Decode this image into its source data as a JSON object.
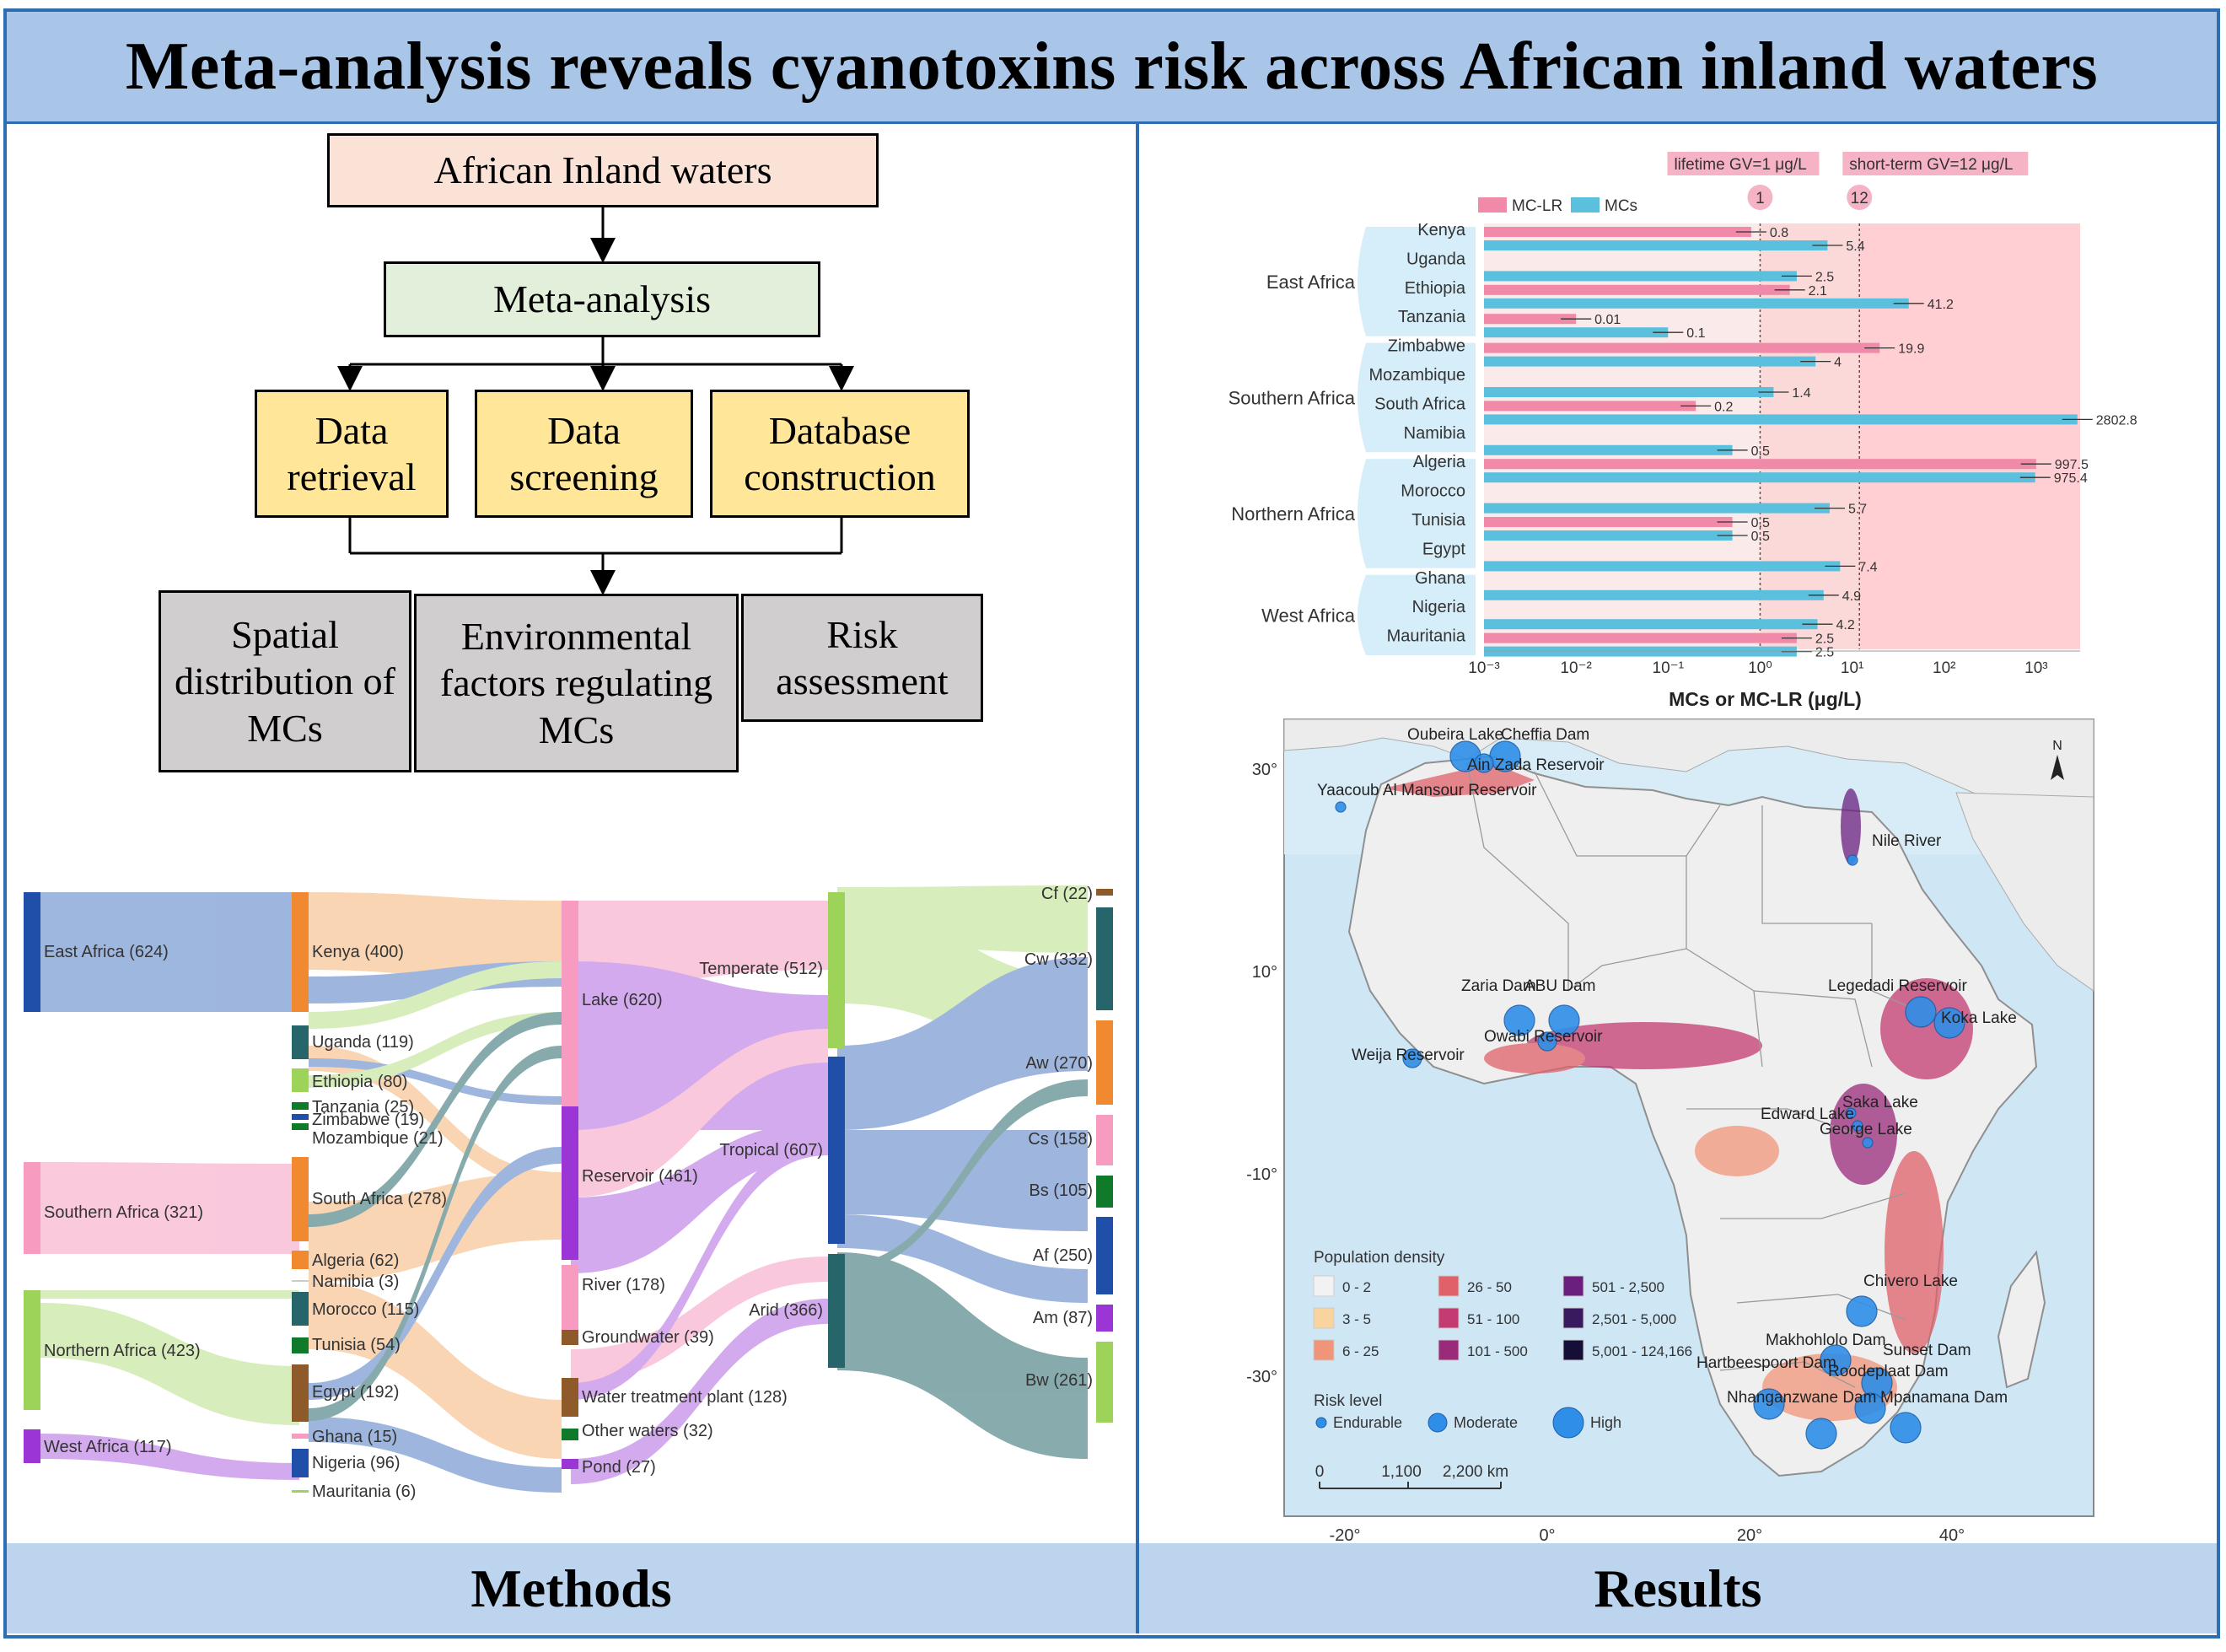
{
  "title": "Meta-analysis reveals cyanotoxins risk across African inland waters",
  "footer": {
    "left": "Methods",
    "right": "Results"
  },
  "flowchart": {
    "top": "African  Inland  waters",
    "meta": "Meta-analysis",
    "steps": [
      "Data retrieval",
      "Data screening",
      "Database construction"
    ],
    "outputs": [
      "Spatial distribution of MCs",
      "Environmental factors regulating  MCs",
      "Risk assessment"
    ]
  },
  "sankey": {
    "regions": [
      "East Africa (624)",
      "Southern Africa (321)",
      "Northern Africa (423)",
      "West Africa (117)"
    ],
    "countries": [
      "Kenya (400)",
      "Uganda (119)",
      "Ethiopia (80)",
      "Tanzania (25)",
      "Zimbabwe (19)",
      "Mozambique (21)",
      "South Africa (278)",
      "Algeria (62)",
      "Namibia (3)",
      "Morocco (115)",
      "Tunisia (54)",
      "Egypt (192)",
      "Ghana (15)",
      "Nigeria (96)",
      "Mauritania (6)"
    ],
    "waters": [
      "Lake (620)",
      "Reservoir (461)",
      "River (178)",
      "Groundwater (39)",
      "Water treatment plant (128)",
      "Other waters (32)",
      "Pond (27)"
    ],
    "climate_zones": [
      "Temperate (512)",
      "Tropical (607)",
      "Arid (366)"
    ],
    "climates": [
      "Cf (22)",
      "Cw (332)",
      "Aw (270)",
      "Cs (158)",
      "Bs (105)",
      "Af (250)",
      "Am (87)",
      "Bw (261)"
    ]
  },
  "chart_data": {
    "type": "bar",
    "orientation": "horizontal",
    "xscale": "log",
    "xlabel": "MCs or MC-LR (μg/L)",
    "xlim": [
      0.001,
      3000
    ],
    "xticks": [
      "10⁻³",
      "10⁻²",
      "10⁻¹",
      "10⁰",
      "10¹",
      "10²",
      "10³"
    ],
    "series": [
      {
        "name": "MC-LR",
        "color": "#f08aa8"
      },
      {
        "name": "MCs",
        "color": "#5bc0de"
      }
    ],
    "guidelines": [
      {
        "label": "lifetime GV=1 μg/L",
        "value": 1,
        "marker": "1"
      },
      {
        "label": "short-term GV=12 μg/L",
        "value": 12,
        "marker": "12"
      }
    ],
    "groups": [
      {
        "name": "East Africa",
        "countries": [
          {
            "name": "Kenya",
            "bars": [
              {
                "s": "MC-LR",
                "v": 0.8,
                "label": "0.8"
              },
              {
                "s": "MCs",
                "v": 5.4,
                "label": "5.4"
              }
            ]
          },
          {
            "name": "Uganda",
            "bars": [
              {
                "s": "MCs",
                "v": 2.5,
                "label": "2.5"
              }
            ]
          },
          {
            "name": "Ethiopia",
            "bars": [
              {
                "s": "MC-LR",
                "v": 2.1,
                "label": "2.1"
              },
              {
                "s": "MCs",
                "v": 41.2,
                "label": "41.2"
              }
            ]
          },
          {
            "name": "Tanzania",
            "bars": [
              {
                "s": "MC-LR",
                "v": 0.01,
                "label": "0.01"
              },
              {
                "s": "MCs",
                "v": 0.1,
                "label": "0.1"
              }
            ]
          }
        ]
      },
      {
        "name": "Southern Africa",
        "countries": [
          {
            "name": "Zimbabwe",
            "bars": [
              {
                "s": "MC-LR",
                "v": 19.9,
                "label": "19.9"
              },
              {
                "s": "MCs",
                "v": 4,
                "label": "4"
              }
            ]
          },
          {
            "name": "Mozambique",
            "bars": [
              {
                "s": "MCs",
                "v": 1.4,
                "label": "1.4"
              }
            ]
          },
          {
            "name": "South Africa",
            "bars": [
              {
                "s": "MC-LR",
                "v": 0.2,
                "label": "0.2"
              },
              {
                "s": "MCs",
                "v": 2802.8,
                "label": "2802.8"
              }
            ]
          },
          {
            "name": "Namibia",
            "bars": [
              {
                "s": "MCs",
                "v": 0.5,
                "label": "0.5"
              }
            ]
          }
        ]
      },
      {
        "name": "Northern Africa",
        "countries": [
          {
            "name": "Algeria",
            "bars": [
              {
                "s": "MC-LR",
                "v": 997.5,
                "label": "997.5"
              },
              {
                "s": "MCs",
                "v": 975.4,
                "label": "975.4"
              }
            ]
          },
          {
            "name": "Morocco",
            "bars": [
              {
                "s": "MCs",
                "v": 5.7,
                "label": "5.7"
              }
            ]
          },
          {
            "name": "Tunisia",
            "bars": [
              {
                "s": "MC-LR",
                "v": 0.5,
                "label": "0.5"
              },
              {
                "s": "MCs",
                "v": 0.5,
                "label": "0.5"
              }
            ]
          },
          {
            "name": "Egypt",
            "bars": [
              {
                "s": "MCs",
                "v": 7.4,
                "label": "7.4"
              }
            ]
          }
        ]
      },
      {
        "name": "West Africa",
        "countries": [
          {
            "name": "Ghana",
            "bars": [
              {
                "s": "MCs",
                "v": 4.9,
                "label": "4.9"
              }
            ]
          },
          {
            "name": "Nigeria",
            "bars": [
              {
                "s": "MCs",
                "v": 4.2,
                "label": "4.2"
              }
            ]
          },
          {
            "name": "Mauritania",
            "bars": [
              {
                "s": "MC-LR",
                "v": 2.5,
                "label": "2.5"
              },
              {
                "s": "MCs",
                "v": 2.5,
                "label": "2.5"
              }
            ]
          }
        ]
      }
    ]
  },
  "map": {
    "lat_labels": [
      "30°",
      "10°",
      "-10°",
      "-30°"
    ],
    "lon_labels": [
      "-20°",
      "0°",
      "20°",
      "40°"
    ],
    "scale_labels": [
      "0",
      "1,100",
      "2,200 km"
    ],
    "north": "N",
    "sites": [
      {
        "name": "Oubeira Lake",
        "risk": "High"
      },
      {
        "name": "Cheffia Dam",
        "risk": "High"
      },
      {
        "name": "Ain Zada Reservoir",
        "risk": "Moderate"
      },
      {
        "name": "Yaacoub Al Mansour Reservoir",
        "risk": "Endurable"
      },
      {
        "name": "Nile River",
        "risk": "Endurable"
      },
      {
        "name": "Zaria Dam",
        "risk": "High"
      },
      {
        "name": "ABU Dam",
        "risk": "High"
      },
      {
        "name": "Legedadi  Reservoir",
        "risk": "High"
      },
      {
        "name": "Koka Lake",
        "risk": "High"
      },
      {
        "name": "Owabi Reservoir",
        "risk": "Moderate"
      },
      {
        "name": "Weija Reservoir",
        "risk": "Moderate"
      },
      {
        "name": "Edward Lake",
        "risk": "Endurable"
      },
      {
        "name": "Saka Lake",
        "risk": "Endurable"
      },
      {
        "name": "George Lake",
        "risk": "Endurable"
      },
      {
        "name": "Chivero Lake",
        "risk": "High"
      },
      {
        "name": "Makhohlolo Dam",
        "risk": "High"
      },
      {
        "name": "Sunset Dam",
        "risk": "High"
      },
      {
        "name": "Hartbeespoort Dam",
        "risk": "High"
      },
      {
        "name": "Roodeplaat Dam",
        "risk": "High"
      },
      {
        "name": "Nhanganzwane Dam",
        "risk": "High"
      },
      {
        "name": "Mpanamana Dam",
        "risk": "High"
      }
    ],
    "legend": {
      "population_title": "Population density",
      "population_bins": [
        {
          "label": "0 - 2",
          "color": "#f2f2f2"
        },
        {
          "label": "3 - 5",
          "color": "#f9d49e"
        },
        {
          "label": "6 - 25",
          "color": "#f0957a"
        },
        {
          "label": "26 - 50",
          "color": "#e0616a"
        },
        {
          "label": "51 - 100",
          "color": "#c43b72"
        },
        {
          "label": "101 - 500",
          "color": "#9a2a7a"
        },
        {
          "label": "501 - 2,500",
          "color": "#6a1f7f"
        },
        {
          "label": "2,501 - 5,000",
          "color": "#3a1a5e"
        },
        {
          "label": "5,001 - 124,166",
          "color": "#150e37"
        }
      ],
      "risk_title": "Risk level",
      "risk_levels": [
        "Endurable",
        "Moderate",
        "High"
      ]
    }
  }
}
